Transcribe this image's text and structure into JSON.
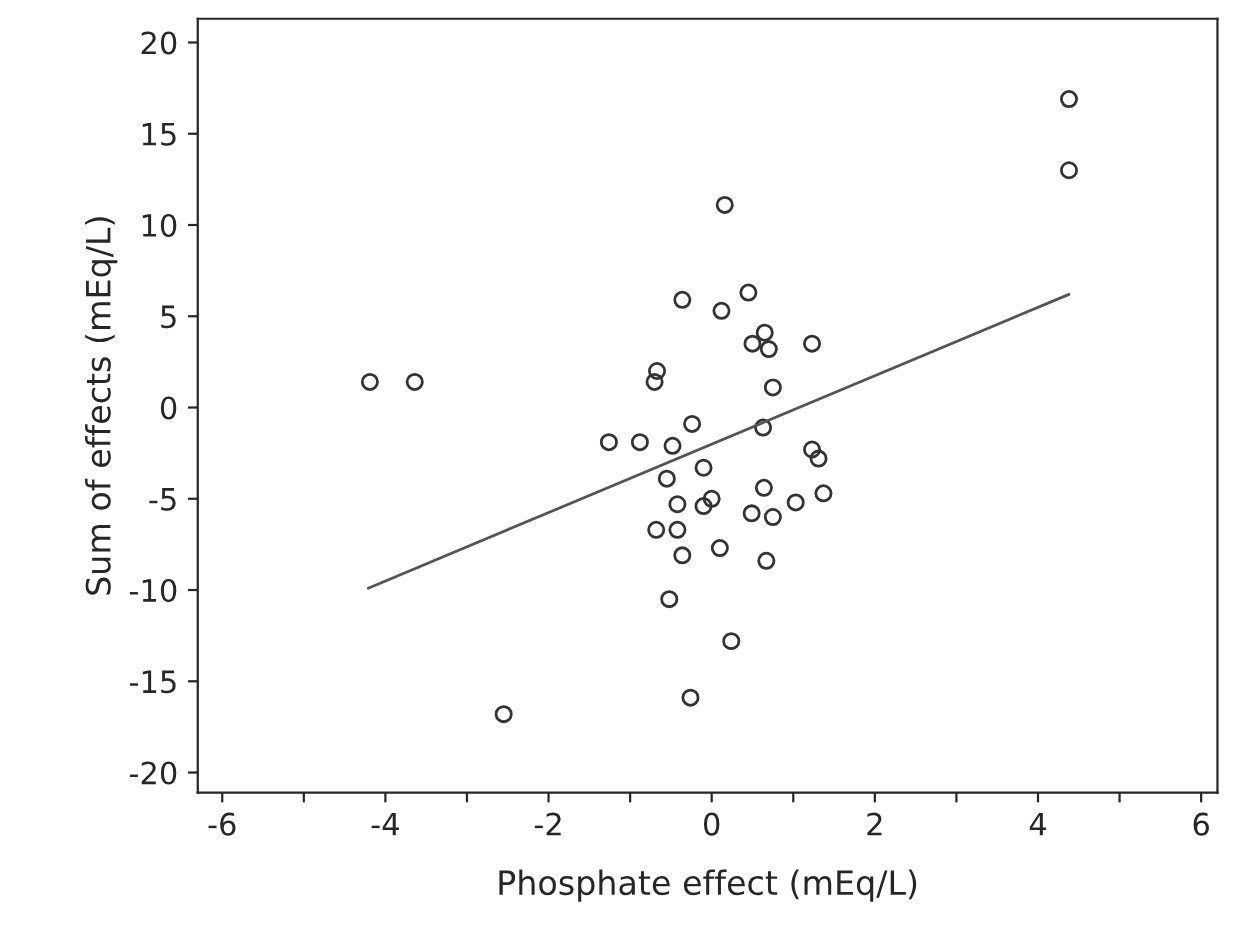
{
  "chart_data": {
    "type": "scatter",
    "xlabel": "Phosphate effect (mEq/L)",
    "ylabel": "Sum of effects (mEq/L)",
    "xlim": [
      -6.3,
      6.2
    ],
    "ylim": [
      -21.1,
      21.3
    ],
    "xticks": [
      -6,
      {
        "value": -5,
        "label": null
      },
      -4,
      {
        "value": -3,
        "label": null
      },
      -2,
      {
        "value": -1,
        "label": null
      },
      0,
      {
        "value": 1,
        "label": null
      },
      2,
      {
        "value": 3,
        "label": null
      },
      4,
      {
        "value": 5,
        "label": null
      },
      6
    ],
    "yticks": [
      -20,
      -15,
      -10,
      -5,
      0,
      5,
      10,
      15,
      20
    ],
    "grid": false,
    "legend": false,
    "marker": "circle",
    "series": [
      {
        "color": "#333333",
        "x": [
          -4.19,
          -3.64,
          -2.55,
          -0.67,
          -0.7,
          -0.36,
          -0.24,
          0.16,
          0.45,
          0.12,
          0.65,
          0.5,
          0.7,
          1.23,
          0.75,
          0.63,
          4.38,
          4.38,
          -1.26,
          -0.88,
          -0.48,
          -0.1,
          -0.55,
          -0.42,
          -0.1,
          -0.68,
          -0.42,
          -0.36,
          -0.52,
          -0.26,
          1.23,
          1.31,
          1.37,
          0.64,
          1.03,
          0.49,
          0.75,
          0.1,
          0.67,
          0.24,
          0.0
        ],
        "values": [
          1.4,
          1.4,
          -16.8,
          2.0,
          1.4,
          5.9,
          -0.9,
          11.1,
          6.3,
          5.3,
          4.1,
          3.5,
          3.2,
          3.5,
          1.1,
          -1.1,
          16.9,
          13.0,
          -1.9,
          -1.9,
          -2.1,
          -3.3,
          -3.9,
          -5.3,
          -5.4,
          -6.7,
          -6.7,
          -8.1,
          -10.5,
          -15.9,
          -2.3,
          -2.8,
          -4.7,
          -4.4,
          -5.2,
          -5.8,
          -6.0,
          -7.7,
          -8.4,
          -12.8,
          -5.0
        ]
      },
      {
        "type": "line",
        "color": "#555555",
        "line_style": "solid",
        "marker": "none",
        "x": [
          -4.21,
          4.38
        ],
        "values": [
          -9.9,
          6.2
        ]
      }
    ]
  }
}
